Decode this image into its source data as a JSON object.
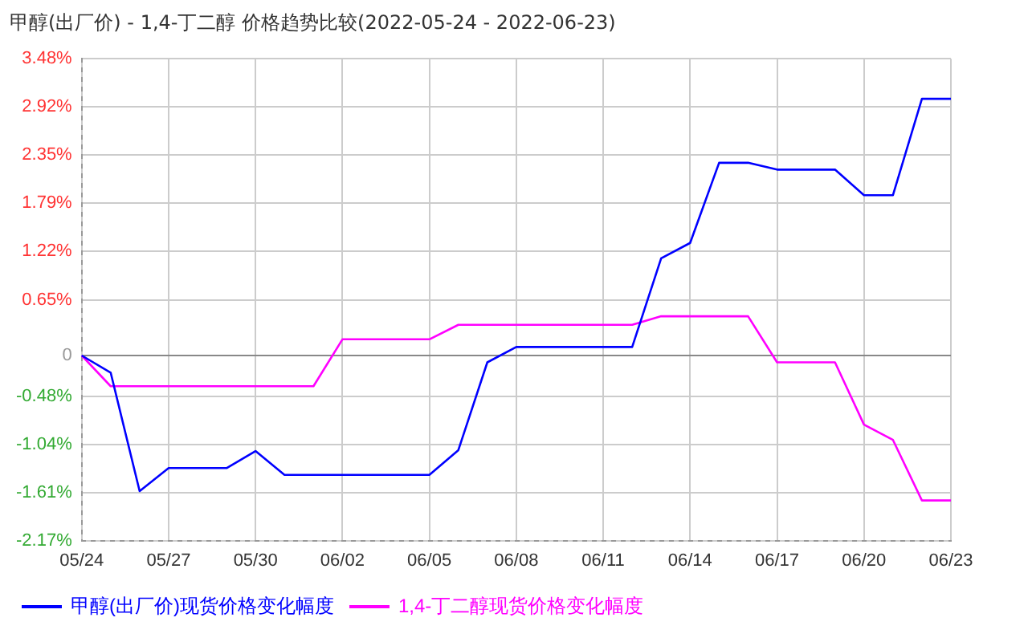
{
  "chart_data": {
    "type": "line",
    "title": "甲醇(出厂价) - 1,4-丁二醇 价格趋势比较(2022-05-24 - 2022-06-23)",
    "categories": [
      "05/24",
      null,
      null,
      "05/27",
      null,
      null,
      "05/30",
      null,
      null,
      "06/02",
      null,
      null,
      "06/05",
      null,
      null,
      "06/08",
      null,
      null,
      "06/11",
      null,
      null,
      "06/14",
      null,
      null,
      "06/17",
      null,
      null,
      "06/20",
      null,
      null,
      "06/23"
    ],
    "series": [
      {
        "name": "甲醇(出厂价)现货价格变化幅度",
        "color": "#0000ff",
        "values": [
          0,
          -0.2,
          -1.59,
          -1.32,
          -1.32,
          -1.32,
          -1.12,
          -1.4,
          -1.4,
          -1.4,
          -1.4,
          -1.4,
          -1.4,
          -1.11,
          -0.08,
          0.1,
          0.1,
          0.1,
          0.1,
          0.1,
          1.14,
          1.32,
          2.26,
          2.26,
          2.18,
          2.18,
          2.18,
          1.88,
          1.88,
          3.01,
          3.01
        ]
      },
      {
        "name": "1,4-丁二醇现货价格变化幅度",
        "color": "#ff00ff",
        "values": [
          0,
          -0.36,
          -0.36,
          -0.36,
          -0.36,
          -0.36,
          -0.36,
          -0.36,
          -0.36,
          0.19,
          0.19,
          0.19,
          0.19,
          0.36,
          0.36,
          0.36,
          0.36,
          0.36,
          0.36,
          0.36,
          0.46,
          0.46,
          0.46,
          0.46,
          -0.08,
          -0.08,
          -0.08,
          -0.81,
          -0.99,
          -1.7,
          -1.7
        ]
      }
    ],
    "ylim": [
      -2.17,
      3.48
    ],
    "yticks": [
      {
        "value": -2.17,
        "label": "-2.17%"
      },
      {
        "value": -1.61,
        "label": "-1.61%"
      },
      {
        "value": -1.04,
        "label": "-1.04%"
      },
      {
        "value": -0.48,
        "label": "-0.48%"
      },
      0,
      {
        "value": 0.65,
        "label": "0.65%"
      },
      {
        "value": 1.22,
        "label": "1.22%"
      },
      {
        "value": 1.79,
        "label": "1.79%"
      },
      {
        "value": 2.35,
        "label": "2.35%"
      },
      {
        "value": 2.92,
        "label": "2.92%"
      },
      {
        "value": 3.48,
        "label": "3.48%"
      }
    ],
    "grid": true,
    "legend": "bottom",
    "marker": "none",
    "line_style": "solid"
  }
}
